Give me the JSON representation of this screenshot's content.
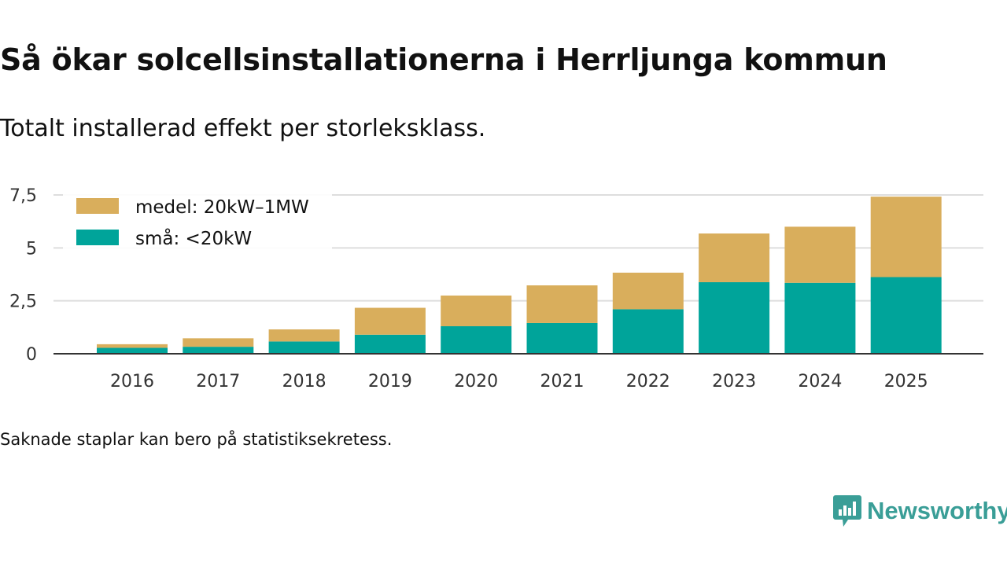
{
  "title": "Så ökar solcellsinstallationerna i Herrljunga kommun",
  "subtitle": "Totalt installerad effekt per storleksklass.",
  "footnote": "Saknade staplar kan bero på statistiksekretess.",
  "brand": {
    "name": "Newsworthy",
    "color": "#3a9e97",
    "icon": "newsworthy-chart-bubble-icon"
  },
  "colors": {
    "small": "#00a49a",
    "medium": "#d9ae5c",
    "grid": "#dddddd",
    "axis": "#333333"
  },
  "chart_data": {
    "type": "bar",
    "stacked": true,
    "title": "Så ökar solcellsinstallationerna i Herrljunga kommun",
    "subtitle": "Totalt installerad effekt per storleksklass.",
    "xlabel": "",
    "ylabel": "",
    "ylim": [
      0,
      7.5
    ],
    "yticks": [
      0,
      2.5,
      5,
      7.5
    ],
    "ytick_labels": [
      "0",
      "2,5",
      "5",
      "7,5"
    ],
    "grid": true,
    "legend_position": "top-left",
    "categories": [
      "2016",
      "2017",
      "2018",
      "2019",
      "2020",
      "2021",
      "2022",
      "2023",
      "2024",
      "2025"
    ],
    "series": [
      {
        "name": "små: <20kW",
        "color": "#00a49a",
        "values": [
          0.28,
          0.33,
          0.58,
          0.9,
          1.3,
          1.45,
          2.1,
          3.38,
          3.35,
          3.62
        ]
      },
      {
        "name": "medel: 20kW–1MW",
        "color": "#d9ae5c",
        "values": [
          0.17,
          0.4,
          0.57,
          1.27,
          1.45,
          1.78,
          1.73,
          2.3,
          2.65,
          3.8
        ]
      }
    ],
    "legend_order": [
      1,
      0
    ]
  }
}
